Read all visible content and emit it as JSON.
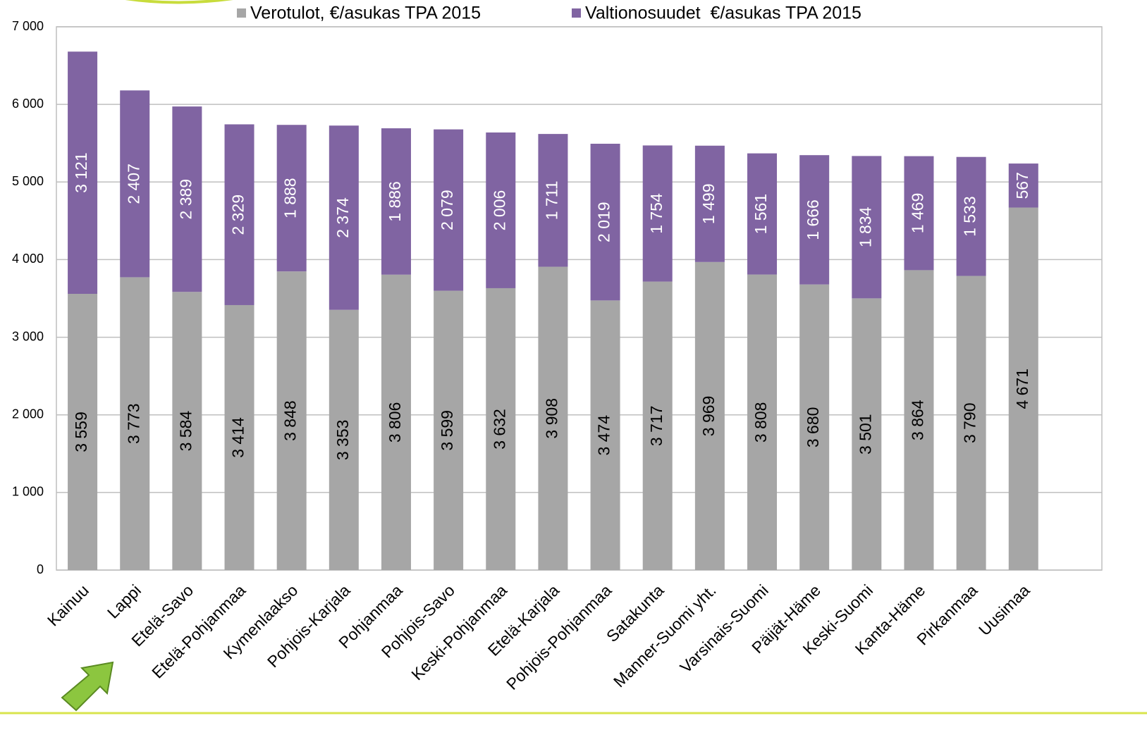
{
  "chart_data": {
    "type": "stacked_bar",
    "categories": [
      "Kainuu",
      "Lappi",
      "Etelä-Savo",
      "Etelä-Pohjanmaa",
      "Kymenlaakso",
      "Pohjois-Karjala",
      "Pohjanmaa",
      "Pohjois-Savo",
      "Keski-Pohjanmaa",
      "Etelä-Karjala",
      "Pohjois-Pohjanmaa",
      "Satakunta",
      "Manner-Suomi yht.",
      "Varsinais-Suomi",
      "Päijät-Häme",
      "Keski-Suomi",
      "Kanta-Häme",
      "Pirkanmaa",
      "Uusimaa"
    ],
    "series": [
      {
        "name": "Verotulot, €/asukas TPA 2015",
        "color": "#a6a6a6",
        "values": [
          3559,
          3773,
          3584,
          3414,
          3848,
          3353,
          3806,
          3599,
          3632,
          3908,
          3474,
          3717,
          3969,
          3808,
          3680,
          3501,
          3864,
          3790,
          4671
        ],
        "value_labels": [
          "3 559",
          "3 773",
          "3 584",
          "3 414",
          "3 848",
          "3 353",
          "3 806",
          "3 599",
          "3 632",
          "3 908",
          "3 474",
          "3 717",
          "3 969",
          "3 808",
          "3 680",
          "3 501",
          "3 864",
          "3 790",
          "4 671"
        ]
      },
      {
        "name": "Valtionosuudet  €/asukas TPA 2015",
        "color": "#8064a2",
        "values": [
          3121,
          2407,
          2389,
          2329,
          1888,
          2374,
          1886,
          2079,
          2006,
          1711,
          2019,
          1754,
          1499,
          1561,
          1666,
          1834,
          1469,
          1533,
          567
        ],
        "value_labels": [
          "3 121",
          "2 407",
          "2 389",
          "2 329",
          "1 888",
          "2 374",
          "1 886",
          "2 079",
          "2 006",
          "1 711",
          "2 019",
          "1 754",
          "1 499",
          "1 561",
          "1 666",
          "1 834",
          "1 469",
          "1 533",
          "567"
        ]
      }
    ],
    "ylim": [
      0,
      7000
    ],
    "yticks": [
      0,
      {
        "value": 1000,
        "label": "1 000"
      },
      {
        "value": 2000,
        "label": "2 000"
      },
      {
        "value": 3000,
        "label": "3 000"
      },
      {
        "value": 4000,
        "label": "4 000"
      },
      {
        "value": 5000,
        "label": "5 000"
      },
      {
        "value": 6000,
        "label": "6 000"
      },
      {
        "value": 7000,
        "label": "7 000"
      }
    ],
    "grid": true,
    "legend": "top"
  }
}
